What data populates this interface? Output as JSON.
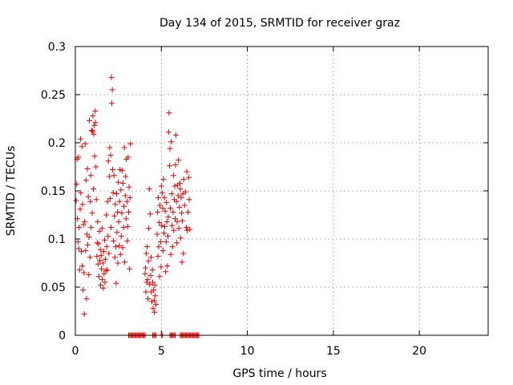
{
  "chart_data": {
    "type": "scatter",
    "title": "Day 134 of 2015, SRMTID for receiver graz",
    "xlabel": "GPS time / hours",
    "ylabel": "SRMTID / TECUs",
    "xlim": [
      0,
      24
    ],
    "ylim": [
      0,
      0.3
    ],
    "xticks": [
      0,
      5,
      10,
      15,
      20
    ],
    "xtick_labels": [
      "0",
      "5",
      "10",
      "15",
      "20"
    ],
    "yticks": [
      0,
      0.05,
      0.1,
      0.15,
      0.2,
      0.25,
      0.3
    ],
    "ytick_labels": [
      "0",
      "0.05",
      "0.1",
      "0.15",
      "0.2",
      "0.25",
      "0.3"
    ],
    "grid": true,
    "marker": "+",
    "series": [
      {
        "name": "SRMTID",
        "color": "#ee0000",
        "points": [
          [
            0.05,
            0.14
          ],
          [
            0.08,
            0.157
          ],
          [
            0.1,
            0.183
          ],
          [
            0.12,
            0.121
          ],
          [
            0.15,
            0.097
          ],
          [
            0.18,
            0.185
          ],
          [
            0.2,
            0.09
          ],
          [
            0.22,
            0.112
          ],
          [
            0.25,
            0.068
          ],
          [
            0.28,
            0.131
          ],
          [
            0.3,
            0.204
          ],
          [
            0.32,
            0.148
          ],
          [
            0.35,
            0.087
          ],
          [
            0.38,
            0.196
          ],
          [
            0.4,
            0.072
          ],
          [
            0.42,
            0.136
          ],
          [
            0.45,
            0.047
          ],
          [
            0.47,
            0.115
          ],
          [
            0.5,
            0.065
          ],
          [
            0.52,
            0.022
          ],
          [
            0.55,
            0.118
          ],
          [
            0.57,
            0.199
          ],
          [
            0.6,
            0.088
          ],
          [
            0.62,
            0.161
          ],
          [
            0.65,
            0.038
          ],
          [
            0.67,
            0.105
          ],
          [
            0.7,
            0.173
          ],
          [
            0.72,
            0.094
          ],
          [
            0.75,
            0.144
          ],
          [
            0.78,
            0.063
          ],
          [
            0.8,
            0.102
          ],
          [
            0.82,
            0.223
          ],
          [
            0.85,
            0.081
          ],
          [
            0.87,
            0.139
          ],
          [
            0.9,
            0.166
          ],
          [
            0.92,
            0.112
          ],
          [
            0.95,
            0.213
          ],
          [
            0.98,
            0.127
          ],
          [
            1.0,
            0.212
          ],
          [
            1.02,
            0.228
          ],
          [
            1.05,
            0.152
          ],
          [
            1.07,
            0.209
          ],
          [
            1.1,
            0.218
          ],
          [
            1.12,
            0.186
          ],
          [
            1.15,
            0.233
          ],
          [
            1.17,
            0.221
          ],
          [
            1.2,
            0.175
          ],
          [
            1.22,
            0.141
          ],
          [
            1.25,
            0.082
          ],
          [
            1.27,
            0.096
          ],
          [
            1.3,
            0.118
          ],
          [
            1.32,
            0.074
          ],
          [
            1.35,
            0.095
          ],
          [
            1.37,
            0.061
          ],
          [
            1.4,
            0.108
          ],
          [
            1.42,
            0.078
          ],
          [
            1.45,
            0.089
          ],
          [
            1.47,
            0.052
          ],
          [
            1.5,
            0.083
          ],
          [
            1.52,
            0.069
          ],
          [
            1.55,
            0.111
          ],
          [
            1.57,
            0.058
          ],
          [
            1.6,
            0.075
          ],
          [
            1.62,
            0.049
          ],
          [
            1.65,
            0.087
          ],
          [
            1.67,
            0.064
          ],
          [
            1.7,
            0.099
          ],
          [
            1.72,
            0.055
          ],
          [
            1.75,
            0.079
          ],
          [
            1.77,
            0.067
          ],
          [
            1.8,
            0.125
          ],
          [
            1.82,
            0.092
          ],
          [
            1.85,
            0.068
          ],
          [
            1.87,
            0.139
          ],
          [
            1.9,
            0.103
          ],
          [
            1.92,
            0.181
          ],
          [
            1.95,
            0.085
          ],
          [
            1.97,
            0.165
          ],
          [
            2.0,
            0.195
          ],
          [
            2.02,
            0.142
          ],
          [
            2.05,
            0.187
          ],
          [
            2.07,
            0.112
          ],
          [
            2.1,
            0.268
          ],
          [
            2.12,
            0.241
          ],
          [
            2.15,
            0.255
          ],
          [
            2.17,
            0.172
          ],
          [
            2.2,
            0.148
          ],
          [
            2.22,
            0.098
          ],
          [
            2.25,
            0.166
          ],
          [
            2.27,
            0.124
          ],
          [
            2.3,
            0.081
          ],
          [
            2.32,
            0.136
          ],
          [
            2.35,
            0.092
          ],
          [
            2.37,
            0.054
          ],
          [
            2.4,
            0.147
          ],
          [
            2.42,
            0.107
          ],
          [
            2.45,
            0.128
          ],
          [
            2.47,
            0.075
          ],
          [
            2.5,
            0.159
          ],
          [
            2.52,
            0.118
          ],
          [
            2.55,
            0.093
          ],
          [
            2.57,
            0.139
          ],
          [
            2.6,
            0.172
          ],
          [
            2.62,
            0.084
          ],
          [
            2.65,
            0.151
          ],
          [
            2.67,
            0.103
          ],
          [
            2.7,
            0.127
          ],
          [
            2.72,
            0.171
          ],
          [
            2.75,
            0.091
          ],
          [
            2.77,
            0.158
          ],
          [
            2.8,
            0.112
          ],
          [
            2.82,
            0.134
          ],
          [
            2.85,
            0.195
          ],
          [
            2.87,
            0.076
          ],
          [
            2.9,
            0.145
          ],
          [
            2.92,
            0.165
          ],
          [
            2.95,
            0.121
          ],
          [
            2.97,
            0.183
          ],
          [
            3.0,
            0.139
          ],
          [
            3.02,
            0.098
          ],
          [
            3.05,
            0.113
          ],
          [
            3.07,
            0.185
          ],
          [
            3.1,
            0.128
          ],
          [
            3.12,
            0.154
          ],
          [
            3.15,
            0.069
          ],
          [
            3.18,
            0.143
          ],
          [
            3.2,
            0.199
          ],
          [
            4.05,
            0.064
          ],
          [
            4.08,
            0.07
          ],
          [
            4.1,
            0.045
          ],
          [
            4.12,
            0.085
          ],
          [
            4.15,
            0.055
          ],
          [
            4.18,
            0.092
          ],
          [
            4.2,
            0.058
          ],
          [
            4.22,
            0.038
          ],
          [
            4.25,
            0.077
          ],
          [
            4.27,
            0.111
          ],
          [
            4.3,
            0.152
          ],
          [
            4.32,
            0.053
          ],
          [
            4.35,
            0.126
          ],
          [
            4.38,
            0.062
          ],
          [
            4.4,
            0.081
          ],
          [
            4.42,
            0.045
          ],
          [
            4.45,
            0.035
          ],
          [
            4.48,
            0.068
          ],
          [
            4.5,
            0.055
          ],
          [
            4.52,
            0.028
          ],
          [
            4.55,
            0.047
          ],
          [
            4.58,
            0.036
          ],
          [
            4.6,
            0.024
          ],
          [
            4.62,
            0.052
          ],
          [
            4.65,
            0.041
          ],
          [
            4.68,
            0.032
          ],
          [
            4.75,
            0.105
          ],
          [
            4.78,
            0.128
          ],
          [
            4.8,
            0.082
          ],
          [
            4.82,
            0.143
          ],
          [
            4.85,
            0.092
          ],
          [
            4.88,
            0.117
          ],
          [
            4.9,
            0.061
          ],
          [
            4.92,
            0.135
          ],
          [
            4.95,
            0.097
          ],
          [
            4.98,
            0.071
          ],
          [
            5.0,
            0.155
          ],
          [
            5.02,
            0.114
          ],
          [
            5.05,
            0.148
          ],
          [
            5.08,
            0.132
          ],
          [
            5.1,
            0.088
          ],
          [
            5.12,
            0.162
          ],
          [
            5.15,
            0.106
          ],
          [
            5.18,
            0.143
          ],
          [
            5.2,
            0.113
          ],
          [
            5.22,
            0.129
          ],
          [
            5.25,
            0.066
          ],
          [
            5.28,
            0.097
          ],
          [
            5.3,
            0.138
          ],
          [
            5.32,
            0.118
          ],
          [
            5.35,
            0.072
          ],
          [
            5.38,
            0.103
          ],
          [
            5.4,
            0.123
          ],
          [
            5.42,
            0.211
          ],
          [
            5.45,
            0.231
          ],
          [
            5.48,
            0.176
          ],
          [
            5.5,
            0.194
          ],
          [
            5.52,
            0.132
          ],
          [
            5.55,
            0.084
          ],
          [
            5.58,
            0.201
          ],
          [
            5.6,
            0.147
          ],
          [
            5.62,
            0.114
          ],
          [
            5.65,
            0.092
          ],
          [
            5.68,
            0.128
          ],
          [
            5.7,
            0.166
          ],
          [
            5.72,
            0.109
          ],
          [
            5.75,
            0.141
          ],
          [
            5.78,
            0.155
          ],
          [
            5.8,
            0.121
          ],
          [
            5.82,
            0.177
          ],
          [
            5.85,
            0.208
          ],
          [
            5.88,
            0.139
          ],
          [
            5.9,
            0.096
          ],
          [
            5.92,
            0.118
          ],
          [
            5.95,
            0.156
          ],
          [
            5.98,
            0.145
          ],
          [
            6.0,
            0.182
          ],
          [
            6.02,
            0.111
          ],
          [
            6.05,
            0.133
          ],
          [
            6.08,
            0.158
          ],
          [
            6.1,
            0.152
          ],
          [
            6.12,
            0.101
          ],
          [
            6.15,
            0.143
          ],
          [
            6.18,
            0.127
          ],
          [
            6.2,
            0.076
          ],
          [
            6.22,
            0.119
          ],
          [
            6.25,
            0.147
          ],
          [
            6.28,
            0.085
          ],
          [
            6.3,
            0.162
          ],
          [
            6.35,
            0.135
          ],
          [
            6.4,
            0.149
          ],
          [
            6.45,
            0.112
          ],
          [
            6.48,
            0.17
          ],
          [
            6.5,
            0.109
          ],
          [
            6.55,
            0.128
          ],
          [
            6.6,
            0.164
          ],
          [
            6.62,
            0.141
          ],
          [
            6.65,
            0.11
          ]
        ]
      }
    ],
    "baseline_markers": {
      "y": 0,
      "segments": [
        [
          3.1,
          4.1
        ],
        [
          4.5,
          4.7
        ],
        [
          5.0,
          5.1
        ],
        [
          5.5,
          5.8
        ],
        [
          6.1,
          7.2
        ]
      ]
    }
  }
}
